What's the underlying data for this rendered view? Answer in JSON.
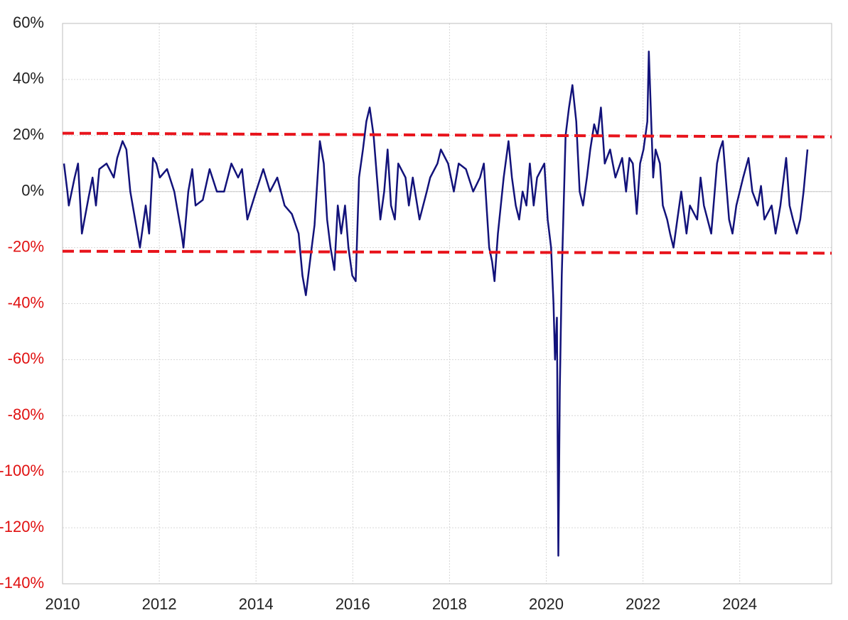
{
  "chart_data": {
    "type": "line",
    "xlim": [
      2010,
      2025.9
    ],
    "xticks": [
      2010,
      2012,
      2014,
      2016,
      2018,
      2020,
      2022,
      2024
    ],
    "ylim": [
      -140,
      60
    ],
    "yticks": [
      {
        "value": -140,
        "label": "-140%"
      },
      {
        "value": -120,
        "label": "-120%"
      },
      {
        "value": -100,
        "label": "-100%"
      },
      {
        "value": -80,
        "label": "-80%"
      },
      {
        "value": -60,
        "label": "-60%"
      },
      {
        "value": -40,
        "label": "-40%"
      },
      {
        "value": -20,
        "label": "-20%"
      },
      {
        "value": 0,
        "label": "0%"
      },
      {
        "value": 20,
        "label": "20%"
      },
      {
        "value": 40,
        "label": "40%"
      },
      {
        "value": 60,
        "label": "60%"
      }
    ],
    "grid": true,
    "negative_tick_color": "#e01010",
    "tick_color": "#222222",
    "series": [
      {
        "color": "#12127a",
        "dashed": false,
        "x": [
          2010.03,
          2010.1,
          2010.13,
          2010.25,
          2010.32,
          2010.4,
          2010.54,
          2010.62,
          2010.69,
          2010.76,
          2010.91,
          2011.06,
          2011.13,
          2011.24,
          2011.32,
          2011.4,
          2011.5,
          2011.6,
          2011.72,
          2011.79,
          2011.87,
          2011.94,
          2012.01,
          2012.16,
          2012.31,
          2012.46,
          2012.5,
          2012.6,
          2012.68,
          2012.75,
          2012.9,
          2013.04,
          2013.19,
          2013.34,
          2013.49,
          2013.63,
          2013.71,
          2013.82,
          2014.0,
          2014.15,
          2014.29,
          2014.44,
          2014.59,
          2014.74,
          2014.88,
          2014.96,
          2015.03,
          2015.15,
          2015.21,
          2015.32,
          2015.4,
          2015.47,
          2015.54,
          2015.62,
          2015.69,
          2015.76,
          2015.84,
          2015.91,
          2015.99,
          2016.06,
          2016.13,
          2016.21,
          2016.28,
          2016.35,
          2016.43,
          2016.5,
          2016.57,
          2016.65,
          2016.72,
          2016.79,
          2016.87,
          2016.94,
          2017.09,
          2017.16,
          2017.24,
          2017.38,
          2017.53,
          2017.6,
          2017.75,
          2017.82,
          2017.97,
          2018.09,
          2018.19,
          2018.34,
          2018.49,
          2018.63,
          2018.71,
          2018.82,
          2018.88,
          2018.93,
          2019.0,
          2019.12,
          2019.22,
          2019.29,
          2019.37,
          2019.44,
          2019.51,
          2019.59,
          2019.66,
          2019.74,
          2019.81,
          2019.96,
          2020.03,
          2020.1,
          2020.15,
          2020.18,
          2020.22,
          2020.25,
          2020.28,
          2020.32,
          2020.4,
          2020.47,
          2020.54,
          2020.62,
          2020.69,
          2020.76,
          2020.84,
          2020.91,
          2020.99,
          2021.06,
          2021.13,
          2021.21,
          2021.32,
          2021.43,
          2021.57,
          2021.65,
          2021.72,
          2021.79,
          2021.87,
          2021.94,
          2022.01,
          2022.09,
          2022.12,
          2022.16,
          2022.21,
          2022.26,
          2022.35,
          2022.41,
          2022.5,
          2022.56,
          2022.63,
          2022.71,
          2022.79,
          2022.9,
          2022.97,
          2023.12,
          2023.19,
          2023.26,
          2023.41,
          2023.53,
          2023.59,
          2023.65,
          2023.71,
          2023.78,
          2023.85,
          2023.93,
          2024.07,
          2024.18,
          2024.26,
          2024.37,
          2024.44,
          2024.51,
          2024.66,
          2024.74,
          2024.84,
          2024.96,
          2025.03,
          2025.1,
          2025.18,
          2025.25,
          2025.32,
          2025.4
        ],
        "values": [
          10,
          0,
          -5,
          5,
          10,
          -15,
          -2,
          5,
          -5,
          8,
          10,
          5,
          12,
          18,
          15,
          0,
          -10,
          -20,
          -5,
          -15,
          12,
          10,
          5,
          8,
          0,
          -15,
          -20,
          0,
          8,
          -5,
          -3,
          8,
          0,
          0,
          10,
          5,
          8,
          -10,
          0,
          8,
          0,
          5,
          -5,
          -8,
          -15,
          -30,
          -37,
          -20,
          -12,
          18,
          10,
          -10,
          -20,
          -28,
          -5,
          -15,
          -5,
          -20,
          -30,
          -32,
          5,
          15,
          25,
          30,
          20,
          5,
          -10,
          0,
          15,
          -5,
          -10,
          10,
          5,
          -5,
          5,
          -10,
          0,
          5,
          10,
          15,
          10,
          0,
          10,
          8,
          0,
          5,
          10,
          -20,
          -25,
          -32,
          -15,
          5,
          18,
          5,
          -5,
          -10,
          0,
          -5,
          10,
          -5,
          5,
          10,
          -10,
          -20,
          -40,
          -60,
          -45,
          -130,
          -70,
          -30,
          20,
          30,
          38,
          25,
          0,
          -5,
          5,
          15,
          24,
          20,
          30,
          10,
          15,
          5,
          12,
          0,
          12,
          10,
          -8,
          10,
          15,
          25,
          50,
          30,
          5,
          15,
          10,
          -5,
          -10,
          -15,
          -20,
          -10,
          0,
          -15,
          -5,
          -10,
          5,
          -5,
          -15,
          10,
          15,
          18,
          5,
          -10,
          -15,
          -5,
          5,
          12,
          0,
          -5,
          2,
          -10,
          -5,
          -15,
          -5,
          12,
          -5,
          -10,
          -15,
          -10,
          0,
          15
        ]
      },
      {
        "color": "#e8141c",
        "dashed": true,
        "x": [
          2010,
          2025.9
        ],
        "values": [
          20.8,
          19.5
        ]
      },
      {
        "color": "#e8141c",
        "dashed": true,
        "x": [
          2010,
          2025.9
        ],
        "values": [
          -21.3,
          -22.0
        ]
      }
    ]
  }
}
